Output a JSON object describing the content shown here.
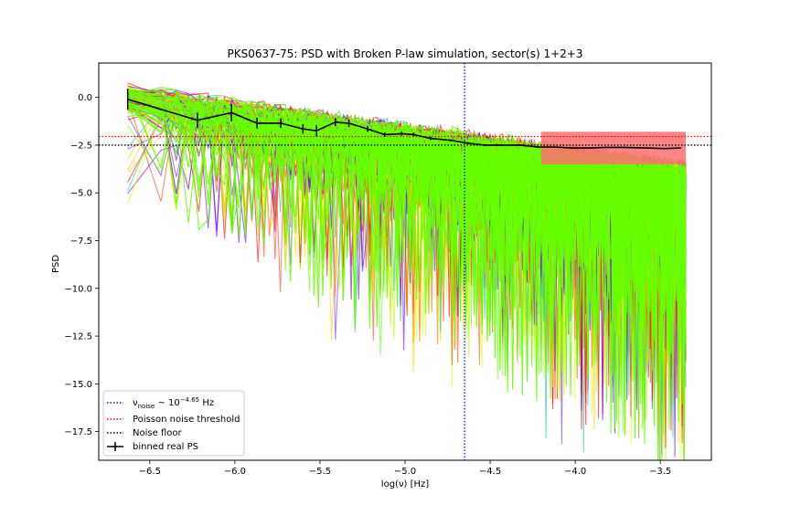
{
  "chart_data": {
    "type": "line",
    "title": "PKS0637-75: PSD with Broken P-law simulation, sector(s) 1+2+3",
    "xlabel": "log(ν) [Hz]",
    "ylabel": "PSD",
    "xlim": [
      -6.8,
      -3.2
    ],
    "ylim": [
      -19.0,
      1.8
    ],
    "xticks": [
      -6.5,
      -6.0,
      -5.5,
      -5.0,
      -4.5,
      -4.0,
      -3.5
    ],
    "xtick_labels": [
      "−6.5",
      "−6.0",
      "−5.5",
      "−5.0",
      "−4.5",
      "−4.0",
      "−3.5"
    ],
    "yticks": [
      0.0,
      -2.5,
      -5.0,
      -7.5,
      -10.0,
      -12.5,
      -15.0,
      -17.5
    ],
    "ytick_labels": [
      "0.0",
      "−2.5",
      "−5.0",
      "−7.5",
      "−10.0",
      "−12.5",
      "−15.0",
      "−17.5"
    ],
    "grid": false,
    "legend_position": "lower-left",
    "lines": {
      "nu_noise_x": -4.65,
      "poisson_threshold_y": -2.05,
      "noise_floor_y": -2.5
    },
    "simulations": {
      "x_range": [
        -6.63,
        -3.35
      ],
      "colors": [
        "#6a00ff",
        "#7b2fe8",
        "#ff0000",
        "#ff3d1f",
        "#ff6600",
        "#ffd000",
        "#d8ff00",
        "#9dff00",
        "#66ff00",
        "#2fbf9a"
      ],
      "final_color": "#66ff00"
    },
    "binned_real_ps": {
      "x": [
        -6.63,
        -6.22,
        -6.02,
        -5.87,
        -5.73,
        -5.6,
        -5.52,
        -5.41,
        -5.33,
        -5.22,
        -5.12,
        -5.02,
        -4.95,
        -4.85,
        -4.73,
        -4.63,
        -4.53,
        -4.43,
        -4.32,
        -4.22,
        -4.12,
        -4.02,
        -3.92,
        -3.82,
        -3.72,
        -3.58,
        -3.48,
        -3.38
      ],
      "y": [
        -0.1,
        -1.2,
        -0.8,
        -1.35,
        -1.35,
        -1.65,
        -1.75,
        -1.3,
        -1.35,
        -1.65,
        -1.95,
        -1.9,
        -1.95,
        -2.15,
        -2.25,
        -2.4,
        -2.5,
        -2.5,
        -2.5,
        -2.6,
        -2.6,
        -2.65,
        -2.65,
        -2.62,
        -2.62,
        -2.65,
        -2.68,
        -2.65
      ],
      "yerr": [
        0.55,
        0.4,
        0.45,
        0.28,
        0.25,
        0.25,
        0.3,
        0.2,
        0.2,
        0.15,
        0.12,
        0.1,
        0.1,
        0.08,
        0.06,
        0.06,
        0.05,
        0.04,
        0.04,
        0.04,
        0.03,
        0.03,
        0.03,
        0.03,
        0.03,
        0.03,
        0.02,
        0.02
      ]
    },
    "poisson_band": {
      "x_range": [
        -4.2,
        -3.35
      ],
      "y_low": -3.5,
      "y_high": -1.8,
      "color": "#ff6f6f"
    },
    "legend": [
      {
        "label_base": "ν",
        "label_sub": "noise",
        "label_mid": " ~ 10",
        "label_sup": "−4.65",
        "label_tail": " Hz",
        "style": "dotted",
        "color": "#1010ff"
      },
      {
        "label": "Poisson noise threshold",
        "style": "dotted",
        "color": "#ff0000"
      },
      {
        "label": "Noise floor",
        "style": "dotted",
        "color": "#000000"
      },
      {
        "label": "binned real PS",
        "style": "errorbar",
        "color": "#000000"
      }
    ]
  }
}
